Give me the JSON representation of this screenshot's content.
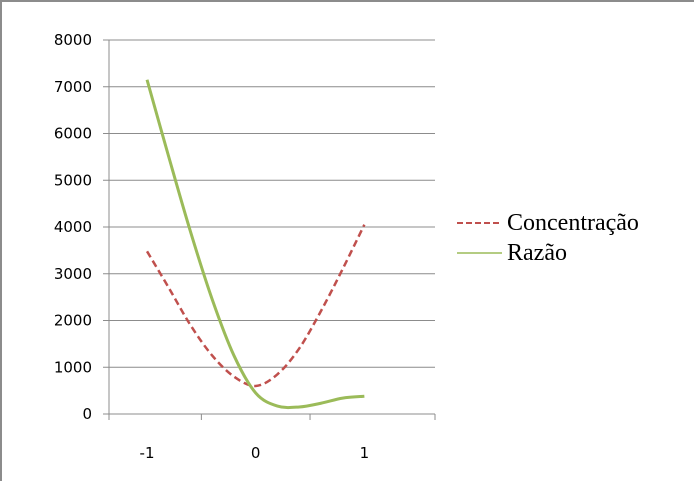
{
  "chart_data": {
    "type": "line",
    "title": "",
    "xlabel": "",
    "ylabel": "",
    "x_ticks": [
      "-1",
      "0",
      "1"
    ],
    "y_ticks": [
      "0",
      "1000",
      "2000",
      "3000",
      "4000",
      "5000",
      "6000",
      "7000",
      "8000"
    ],
    "xlim": [
      -1.35,
      1.65
    ],
    "ylim": [
      0,
      8000
    ],
    "grid": "horizontal",
    "legend_position": "right",
    "series": [
      {
        "name": "Concentração",
        "color": "#c0504d",
        "style": "dashed",
        "x": [
          -1,
          -0.8,
          -0.6,
          -0.4,
          -0.2,
          0,
          0.2,
          0.4,
          0.6,
          0.8,
          1
        ],
        "y": [
          3480,
          2700,
          1900,
          1250,
          800,
          600,
          850,
          1400,
          2200,
          3100,
          4050
        ]
      },
      {
        "name": "Razão",
        "color": "#9bbb59",
        "style": "solid",
        "x": [
          -1,
          -0.8,
          -0.6,
          -0.4,
          -0.2,
          0,
          0.2,
          0.4,
          0.6,
          0.8,
          1
        ],
        "y": [
          7150,
          5500,
          3900,
          2450,
          1250,
          450,
          170,
          150,
          230,
          340,
          380
        ]
      }
    ]
  }
}
